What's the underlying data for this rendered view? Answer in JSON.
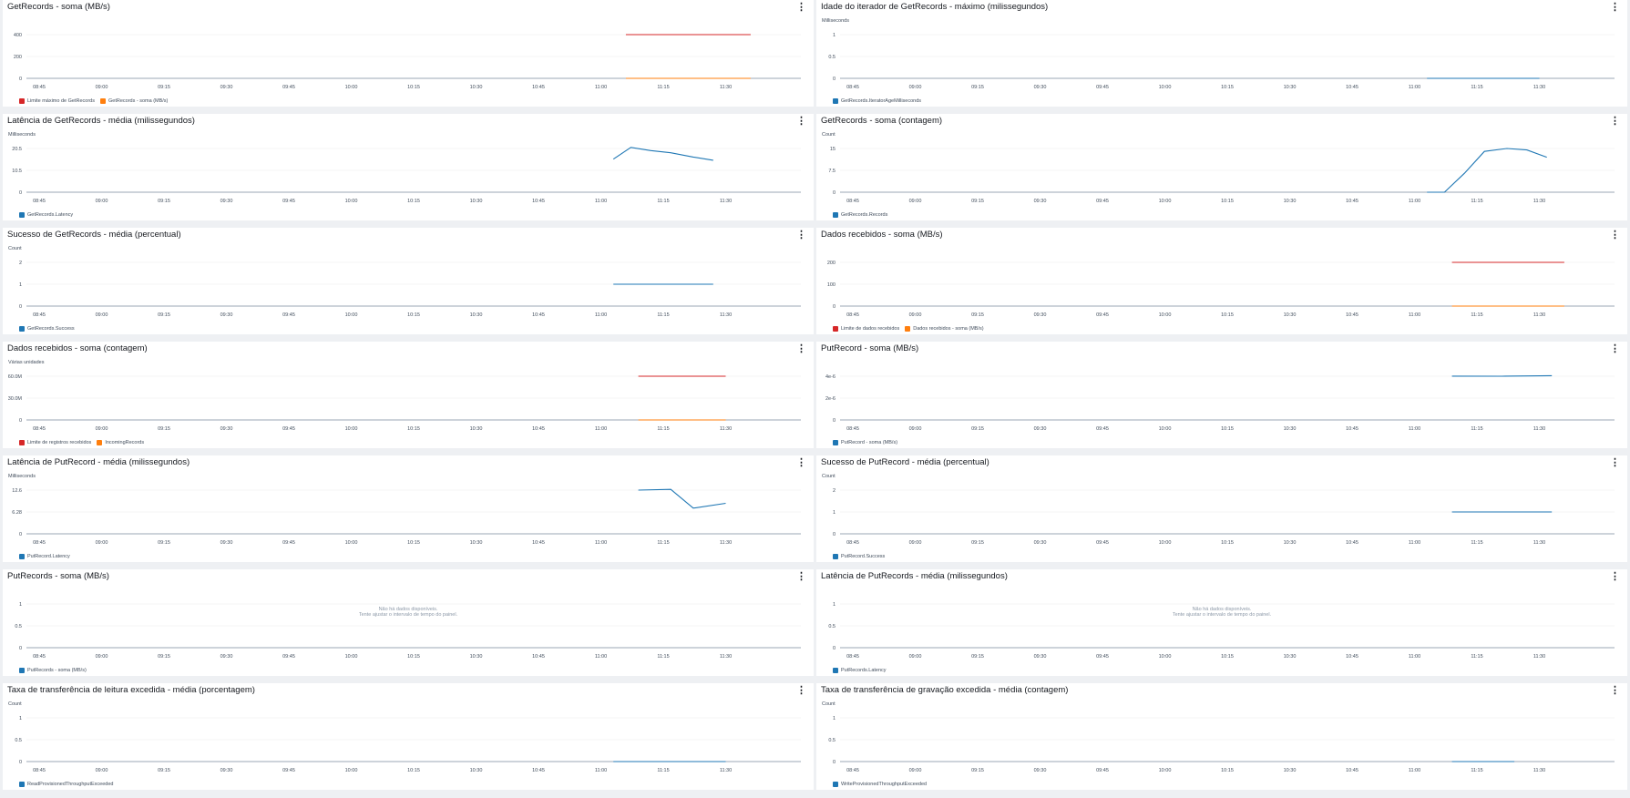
{
  "x_ticks": [
    "08:45",
    "09:00",
    "09:15",
    "09:30",
    "09:45",
    "10:00",
    "10:15",
    "10:30",
    "10:45",
    "11:00",
    "11:15",
    "11:30"
  ],
  "no_data_text": [
    "Não há dados disponíveis.",
    "Tente ajustar o intervalo de tempo do painel."
  ],
  "menu_icon": "⋮",
  "colors": {
    "blue": "#1f77b4",
    "red": "#d62728",
    "orange": "#ff7f0e"
  },
  "panels": [
    {
      "title": "GetRecords - soma (MB/s)",
      "unit": "",
      "legend": [
        {
          "name": "Limite máximo de GetRecords",
          "color": "#d62728"
        },
        {
          "name": "GetRecords - soma (MB/s)",
          "color": "#ff7f0e"
        }
      ],
      "chart_data": {
        "type": "line",
        "ylim": [
          0,
          400
        ],
        "yticks": [
          "0",
          "200",
          "400"
        ],
        "series": [
          {
            "name": "Limite máximo de GetRecords",
            "color": "#d62728",
            "x": [
              11.1,
              11.6
            ],
            "values": [
              400,
              400
            ]
          },
          {
            "name": "GetRecords - soma (MB/s)",
            "color": "#ff7f0e",
            "x": [
              11.1,
              11.6
            ],
            "values": [
              0,
              0
            ]
          }
        ]
      }
    },
    {
      "title": "Idade do iterador de GetRecords - máximo (milissegundos)",
      "unit": "Milliseconds",
      "legend": [
        {
          "name": "GetRecords.IteratorAgeMilliseconds",
          "color": "#1f77b4"
        }
      ],
      "chart_data": {
        "type": "line",
        "ylim": [
          0,
          1
        ],
        "yticks": [
          "0",
          "0.5",
          "1"
        ],
        "series": [
          {
            "name": "GetRecords.IteratorAgeMilliseconds",
            "color": "#1f77b4",
            "x": [
              11.05,
              11.5
            ],
            "values": [
              0,
              0
            ]
          }
        ]
      }
    },
    {
      "title": "Latência de GetRecords - média (milissegundos)",
      "unit": "Milliseconds",
      "legend": [
        {
          "name": "GetRecords.Latency",
          "color": "#1f77b4"
        }
      ],
      "chart_data": {
        "type": "line",
        "ylim": [
          0,
          20.5
        ],
        "yticks": [
          "0",
          "10.5",
          "20.5"
        ],
        "series": [
          {
            "name": "GetRecords.Latency",
            "color": "#1f77b4",
            "x": [
              11.05,
              11.12,
              11.2,
              11.28,
              11.37,
              11.45
            ],
            "values": [
              15.5,
              21,
              19.5,
              18.5,
              16.5,
              15
            ]
          }
        ]
      }
    },
    {
      "title": "GetRecords - soma (contagem)",
      "unit": "Count",
      "legend": [
        {
          "name": "GetRecords.Records",
          "color": "#1f77b4"
        }
      ],
      "chart_data": {
        "type": "line",
        "ylim": [
          0,
          15
        ],
        "yticks": [
          "0",
          "7.5",
          "15"
        ],
        "series": [
          {
            "name": "GetRecords.Records",
            "color": "#1f77b4",
            "x": [
              11.05,
              11.12,
              11.2,
              11.28,
              11.37,
              11.45,
              11.53
            ],
            "values": [
              0,
              0,
              6.5,
              14,
              15,
              14.5,
              12
            ]
          }
        ]
      }
    },
    {
      "title": "Sucesso de GetRecords - média (percentual)",
      "unit": "Count",
      "legend": [
        {
          "name": "GetRecords.Success",
          "color": "#1f77b4"
        }
      ],
      "chart_data": {
        "type": "line",
        "ylim": [
          0,
          2
        ],
        "yticks": [
          "0",
          "1",
          "2"
        ],
        "series": [
          {
            "name": "GetRecords.Success",
            "color": "#1f77b4",
            "x": [
              11.05,
              11.45
            ],
            "values": [
              1,
              1
            ]
          }
        ]
      }
    },
    {
      "title": "Dados recebidos - soma (MB/s)",
      "unit": "",
      "legend": [
        {
          "name": "Limite de dados recebidos",
          "color": "#d62728"
        },
        {
          "name": "Dados recebidos - soma (MB/s)",
          "color": "#ff7f0e"
        }
      ],
      "chart_data": {
        "type": "line",
        "ylim": [
          0,
          200
        ],
        "yticks": [
          "0",
          "100",
          "200"
        ],
        "series": [
          {
            "name": "Limite de dados recebidos",
            "color": "#d62728",
            "x": [
              11.15,
              11.6
            ],
            "values": [
              200,
              200
            ]
          },
          {
            "name": "Dados recebidos - soma (MB/s)",
            "color": "#ff7f0e",
            "x": [
              11.15,
              11.6
            ],
            "values": [
              0,
              0
            ]
          }
        ]
      }
    },
    {
      "title": "Dados recebidos - soma (contagem)",
      "unit": "Várias unidades",
      "legend": [
        {
          "name": "Limite de registros recebidos",
          "color": "#d62728"
        },
        {
          "name": "IncomingRecords",
          "color": "#ff7f0e"
        }
      ],
      "chart_data": {
        "type": "line",
        "ylim": [
          0,
          60
        ],
        "yticks": [
          "0",
          "30.0M",
          "60.0M"
        ],
        "series": [
          {
            "name": "Limite de registros recebidos",
            "color": "#d62728",
            "x": [
              11.15,
              11.5
            ],
            "values": [
              60,
              60
            ]
          },
          {
            "name": "IncomingRecords",
            "color": "#ff7f0e",
            "x": [
              11.15,
              11.5
            ],
            "values": [
              0,
              0
            ]
          }
        ]
      }
    },
    {
      "title": "PutRecord - soma (MB/s)",
      "unit": "",
      "legend": [
        {
          "name": "PutRecord - soma (MB/s)",
          "color": "#1f77b4"
        }
      ],
      "chart_data": {
        "type": "line",
        "ylim": [
          0,
          4e-06
        ],
        "yticks": [
          "0",
          "2e-6",
          "4e-6"
        ],
        "series": [
          {
            "name": "PutRecord - soma (MB/s)",
            "color": "#1f77b4",
            "x": [
              11.15,
              11.35,
              11.55
            ],
            "values": [
              4.01e-06,
              4e-06,
              4.05e-06
            ]
          }
        ]
      }
    },
    {
      "title": "Latência de PutRecord - média (milissegundos)",
      "unit": "Milliseconds",
      "legend": [
        {
          "name": "PutRecord.Latency",
          "color": "#1f77b4"
        }
      ],
      "chart_data": {
        "type": "line",
        "ylim": [
          0,
          12.6
        ],
        "yticks": [
          "0",
          "6.28",
          "12.6"
        ],
        "series": [
          {
            "name": "PutRecord.Latency",
            "color": "#1f77b4",
            "x": [
              11.15,
              11.28,
              11.37,
              11.5
            ],
            "values": [
              12.6,
              12.8,
              7.4,
              8.8
            ]
          }
        ]
      }
    },
    {
      "title": "Sucesso de PutRecord - média (percentual)",
      "unit": "Count",
      "legend": [
        {
          "name": "PutRecord.Success",
          "color": "#1f77b4"
        }
      ],
      "chart_data": {
        "type": "line",
        "ylim": [
          0,
          2
        ],
        "yticks": [
          "0",
          "1",
          "2"
        ],
        "series": [
          {
            "name": "PutRecord.Success",
            "color": "#1f77b4",
            "x": [
              11.15,
              11.55
            ],
            "values": [
              1,
              1
            ]
          }
        ]
      }
    },
    {
      "title": "PutRecords - soma (MB/s)",
      "unit": "",
      "legend": [
        {
          "name": "PutRecords - soma (MB/s)",
          "color": "#1f77b4"
        }
      ],
      "nodata": true,
      "chart_data": {
        "type": "line",
        "ylim": [
          0,
          1
        ],
        "yticks": [
          "0",
          "0.5",
          "1"
        ],
        "series": []
      }
    },
    {
      "title": "Latência de PutRecords - média (milissegundos)",
      "unit": "",
      "legend": [
        {
          "name": "PutRecords.Latency",
          "color": "#1f77b4"
        }
      ],
      "nodata": true,
      "chart_data": {
        "type": "line",
        "ylim": [
          0,
          1
        ],
        "yticks": [
          "0",
          "0.5",
          "1"
        ],
        "series": []
      }
    },
    {
      "title": "Taxa de transferência de leitura excedida - média (porcentagem)",
      "unit": "Count",
      "legend": [
        {
          "name": "ReadProvisionedThroughputExceeded",
          "color": "#1f77b4"
        }
      ],
      "chart_data": {
        "type": "line",
        "ylim": [
          0,
          1
        ],
        "yticks": [
          "0",
          "0.5",
          "1"
        ],
        "series": [
          {
            "name": "ReadProvisionedThroughputExceeded",
            "color": "#1f77b4",
            "x": [
              11.05,
              11.5
            ],
            "values": [
              0,
              0
            ]
          }
        ]
      }
    },
    {
      "title": "Taxa de transferência de gravação excedida - média (contagem)",
      "unit": "Count",
      "legend": [
        {
          "name": "WriteProvisionedThroughputExceeded",
          "color": "#1f77b4"
        }
      ],
      "chart_data": {
        "type": "line",
        "ylim": [
          0,
          1
        ],
        "yticks": [
          "0",
          "0.5",
          "1"
        ],
        "series": [
          {
            "name": "WriteProvisionedThroughputExceeded",
            "color": "#1f77b4",
            "x": [
              11.15,
              11.4
            ],
            "values": [
              0,
              0
            ]
          }
        ]
      }
    }
  ]
}
